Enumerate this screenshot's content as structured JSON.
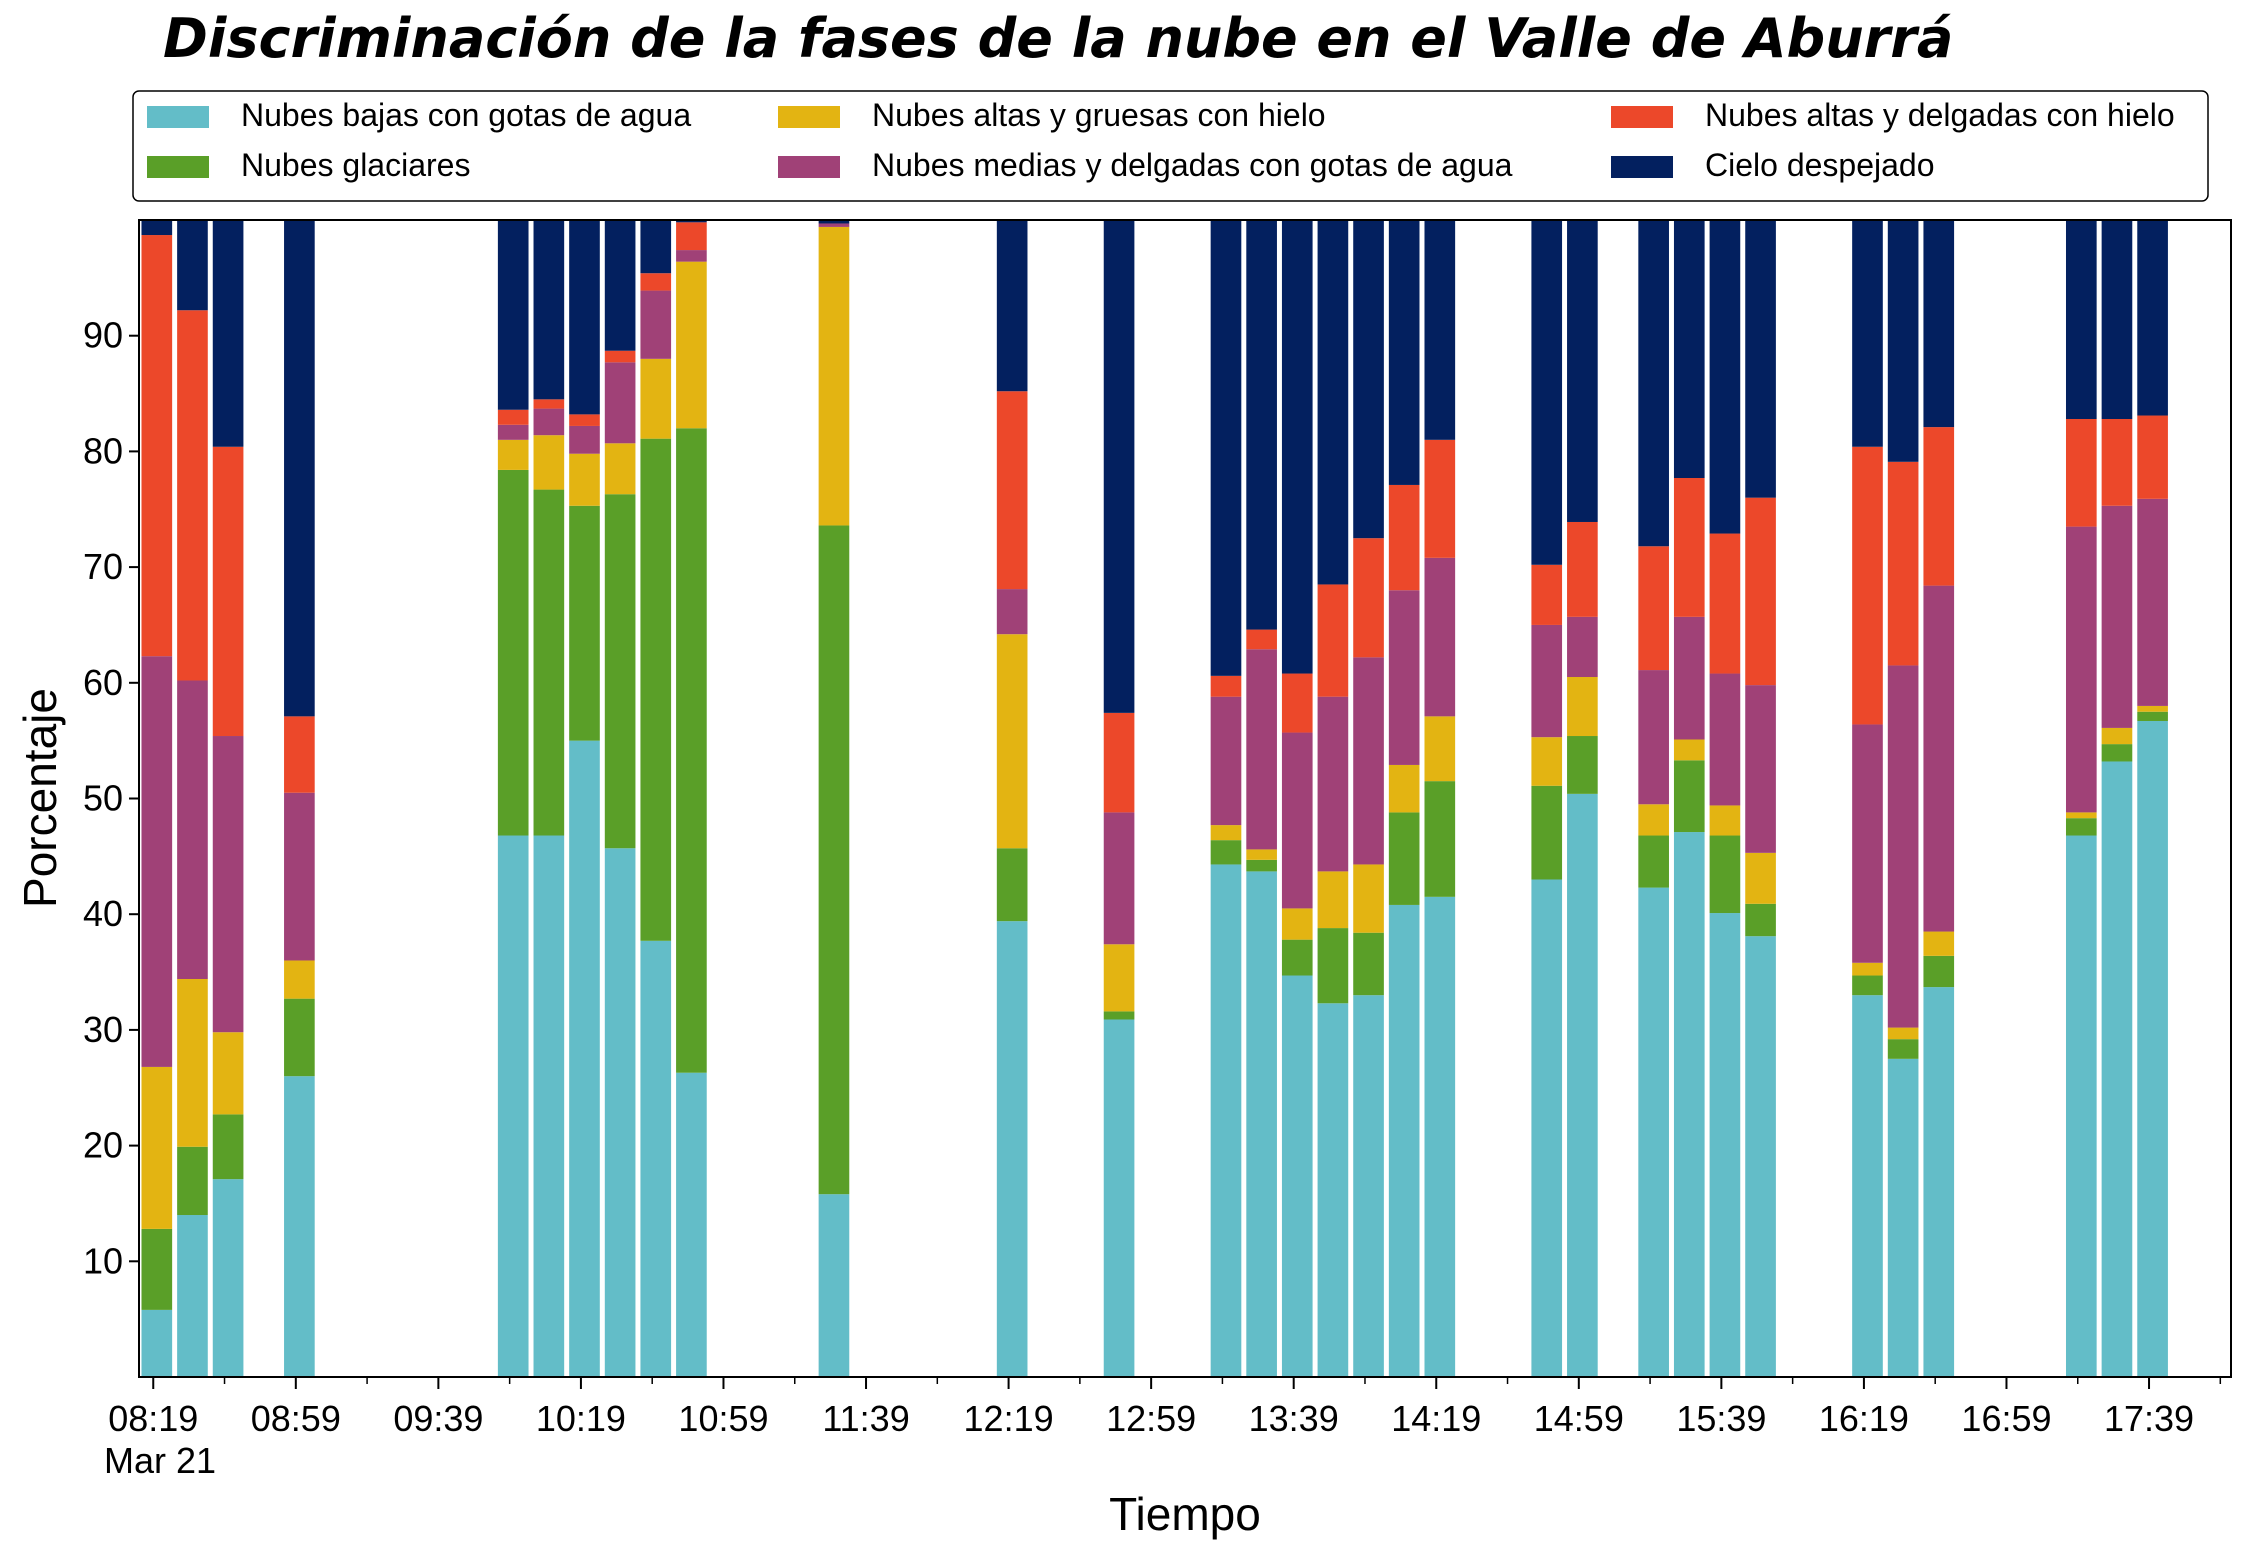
{
  "chart_data": {
    "type": "bar",
    "stacked": true,
    "title": "Discriminación de la fases de la nube en el Valle de Aburrá",
    "xlabel": "Tiempo",
    "ylabel": "Porcentaje",
    "ylim": [
      0,
      100
    ],
    "yticks": [
      10,
      20,
      30,
      40,
      50,
      60,
      70,
      80,
      90
    ],
    "xlim": [
      495,
      1082
    ],
    "xtick_labels": [
      {
        "t": 499,
        "label": "08:19"
      },
      {
        "t": 539,
        "label": "08:59"
      },
      {
        "t": 579,
        "label": "09:39"
      },
      {
        "t": 619,
        "label": "10:19"
      },
      {
        "t": 659,
        "label": "10:59"
      },
      {
        "t": 699,
        "label": "11:39"
      },
      {
        "t": 739,
        "label": "12:19"
      },
      {
        "t": 779,
        "label": "12:59"
      },
      {
        "t": 819,
        "label": "13:39"
      },
      {
        "t": 859,
        "label": "14:19"
      },
      {
        "t": 899,
        "label": "14:59"
      },
      {
        "t": 939,
        "label": "15:39"
      },
      {
        "t": 979,
        "label": "16:19"
      },
      {
        "t": 1019,
        "label": "16:59"
      },
      {
        "t": 1059,
        "label": "17:39"
      }
    ],
    "minor_ticks": [
      519,
      559,
      599,
      639,
      679,
      719,
      759,
      799,
      839,
      879,
      919,
      959,
      999,
      1039,
      1079
    ],
    "date_label": "Mar 21",
    "legend_placement": "top",
    "grid": false,
    "series": [
      {
        "name": "Nubes bajas con gotas de agua",
        "color": "#63BDC8"
      },
      {
        "name": "Nubes glaciares",
        "color": "#5A9F28"
      },
      {
        "name": "Nubes altas y gruesas con hielo",
        "color": "#E3B412"
      },
      {
        "name": "Nubes medias y delgadas con gotas de agua",
        "color": "#A04177"
      },
      {
        "name": "Nubes altas y delgadas con hielo",
        "color": "#EC482A"
      },
      {
        "name": "Cielo despejado",
        "color": "#03205F"
      }
    ],
    "bars": [
      {
        "t": 500,
        "values": [
          5.8,
          7.0,
          14.0,
          35.5,
          36.4,
          1.3
        ]
      },
      {
        "t": 510,
        "values": [
          14.0,
          5.9,
          14.5,
          25.8,
          32.0,
          7.8
        ]
      },
      {
        "t": 520,
        "values": [
          17.1,
          5.6,
          7.1,
          25.6,
          25.0,
          19.6
        ]
      },
      {
        "t": 540,
        "values": [
          26.0,
          6.7,
          3.3,
          14.5,
          6.6,
          42.9
        ]
      },
      {
        "t": 600,
        "values": [
          46.8,
          31.6,
          2.6,
          1.3,
          1.3,
          16.4
        ]
      },
      {
        "t": 610,
        "values": [
          46.8,
          29.9,
          4.7,
          2.3,
          0.8,
          15.5
        ]
      },
      {
        "t": 620,
        "values": [
          55.0,
          20.3,
          4.5,
          2.4,
          1.0,
          16.8
        ]
      },
      {
        "t": 630,
        "values": [
          45.7,
          30.6,
          4.4,
          7.0,
          1.0,
          11.3
        ]
      },
      {
        "t": 640,
        "values": [
          37.7,
          43.4,
          6.9,
          5.9,
          1.5,
          4.6
        ]
      },
      {
        "t": 650,
        "values": [
          26.3,
          55.7,
          14.4,
          1.0,
          2.4,
          0.2
        ]
      },
      {
        "t": 690,
        "values": [
          15.8,
          57.8,
          25.8,
          0.3,
          0.0,
          0.3
        ]
      },
      {
        "t": 740,
        "values": [
          39.4,
          6.3,
          18.5,
          3.9,
          17.1,
          14.8
        ]
      },
      {
        "t": 770,
        "values": [
          30.9,
          0.7,
          5.8,
          11.4,
          8.6,
          42.6
        ]
      },
      {
        "t": 800,
        "values": [
          44.3,
          2.1,
          1.3,
          11.1,
          1.8,
          39.4
        ]
      },
      {
        "t": 810,
        "values": [
          43.7,
          1.0,
          0.9,
          17.3,
          1.7,
          35.4
        ]
      },
      {
        "t": 820,
        "values": [
          34.7,
          3.1,
          2.7,
          15.2,
          5.1,
          39.2
        ]
      },
      {
        "t": 830,
        "values": [
          32.3,
          6.5,
          4.9,
          15.1,
          9.7,
          31.5
        ]
      },
      {
        "t": 840,
        "values": [
          33.0,
          5.4,
          5.9,
          17.9,
          10.3,
          27.5
        ]
      },
      {
        "t": 850,
        "values": [
          40.8,
          8.0,
          4.1,
          15.1,
          9.1,
          22.9
        ]
      },
      {
        "t": 860,
        "values": [
          41.5,
          10.0,
          5.6,
          13.7,
          10.2,
          19.0
        ]
      },
      {
        "t": 890,
        "values": [
          43.0,
          8.1,
          4.2,
          9.7,
          5.2,
          29.8
        ]
      },
      {
        "t": 900,
        "values": [
          50.4,
          5.0,
          5.1,
          5.2,
          8.2,
          26.1
        ]
      },
      {
        "t": 920,
        "values": [
          42.3,
          4.5,
          2.7,
          11.6,
          10.7,
          28.2
        ]
      },
      {
        "t": 930,
        "values": [
          47.1,
          6.2,
          1.8,
          10.6,
          12.0,
          22.3
        ]
      },
      {
        "t": 940,
        "values": [
          40.1,
          6.7,
          2.6,
          11.4,
          12.1,
          27.1
        ]
      },
      {
        "t": 950,
        "values": [
          38.1,
          2.8,
          4.4,
          14.5,
          16.2,
          24.0
        ]
      },
      {
        "t": 980,
        "values": [
          33.0,
          1.7,
          1.1,
          20.6,
          24.0,
          19.6
        ]
      },
      {
        "t": 990,
        "values": [
          27.5,
          1.7,
          1.0,
          31.3,
          17.6,
          20.9
        ]
      },
      {
        "t": 1000,
        "values": [
          33.7,
          2.7,
          2.1,
          29.9,
          13.7,
          17.9
        ]
      },
      {
        "t": 1040,
        "values": [
          46.8,
          1.5,
          0.5,
          24.7,
          9.3,
          17.2
        ]
      },
      {
        "t": 1050,
        "values": [
          53.2,
          1.5,
          1.4,
          19.2,
          7.5,
          17.2
        ]
      },
      {
        "t": 1060,
        "values": [
          56.7,
          0.8,
          0.5,
          17.9,
          7.2,
          16.9
        ]
      }
    ]
  }
}
